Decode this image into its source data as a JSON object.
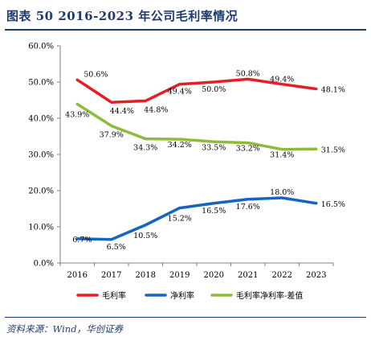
{
  "header": {
    "title": "图表 50   2016-2023 年公司毛利率情况"
  },
  "footer": {
    "source": "资料来源：Wind，华创证券"
  },
  "chart_data": {
    "type": "line",
    "categories": [
      "2016",
      "2017",
      "2018",
      "2019",
      "2020",
      "2021",
      "2022",
      "2023"
    ],
    "ylim": [
      0,
      60
    ],
    "yticks": [
      "0.0%",
      "10.0%",
      "20.0%",
      "30.0%",
      "40.0%",
      "50.0%",
      "60.0%"
    ],
    "grid": false,
    "legend": "bottom",
    "series": [
      {
        "name": "毛利率",
        "color": "#e31e24",
        "values": [
          50.6,
          44.4,
          44.8,
          49.4,
          50.0,
          50.8,
          49.4,
          48.1
        ],
        "labels": [
          "50.6%",
          "44.4%",
          "44.8%",
          "49.4%",
          "50.0%",
          "50.8%",
          "49.4%",
          "48.1%"
        ]
      },
      {
        "name": "净利率",
        "color": "#1565c0",
        "values": [
          6.7,
          6.5,
          10.5,
          15.2,
          16.5,
          17.6,
          18.0,
          16.5
        ],
        "labels": [
          "6.7%",
          "6.5%",
          "10.5%",
          "15.2%",
          "16.5%",
          "17.6%",
          "18.0%",
          "16.5%"
        ]
      },
      {
        "name": "毛利率净利率-差值",
        "color": "#8dbb3c",
        "values": [
          43.9,
          37.9,
          34.3,
          34.2,
          33.5,
          33.2,
          31.4,
          31.5
        ],
        "labels": [
          "43.9%",
          "37.9%",
          "34.3%",
          "34.2%",
          "33.5%",
          "33.2%",
          "31.4%",
          "31.5%"
        ]
      }
    ]
  }
}
